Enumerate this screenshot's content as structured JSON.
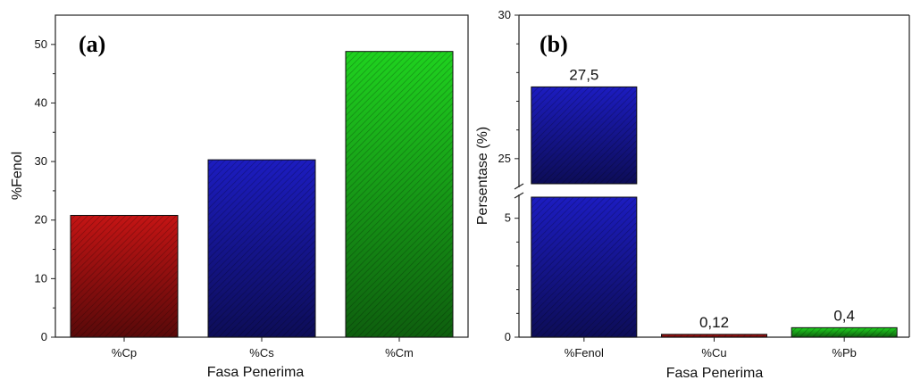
{
  "chart_data": [
    {
      "type": "bar",
      "panel_label": "(a)",
      "categories": [
        "%Cp",
        "%Cs",
        "%Cm"
      ],
      "values": [
        20.8,
        30.3,
        48.8
      ],
      "colors": [
        "#c41414",
        "#1c1cc0",
        "#1fd21f"
      ],
      "xlabel": "Fasa Penerima",
      "ylabel": "%Fenol",
      "ylim": [
        0,
        55
      ],
      "yticks": [
        "0",
        "10",
        "20",
        "30",
        "40",
        "50"
      ],
      "grid": false
    },
    {
      "type": "bar",
      "panel_label": "(b)",
      "categories": [
        "%Fenol",
        "%Cu",
        "%Pb"
      ],
      "values": [
        27.5,
        0.12,
        0.4
      ],
      "data_labels": [
        "27,5",
        "0,12",
        "0,4"
      ],
      "colors": [
        "#1c1cc0",
        "#c41414",
        "#1fd21f"
      ],
      "xlabel": "Fasa Penerima",
      "ylabel": "Persentase (%)",
      "axis_break": {
        "lower_range": [
          0,
          6
        ],
        "upper_range": [
          24,
          30
        ]
      },
      "yticks": [
        "0",
        "5",
        "25",
        "30"
      ],
      "grid": false
    }
  ]
}
